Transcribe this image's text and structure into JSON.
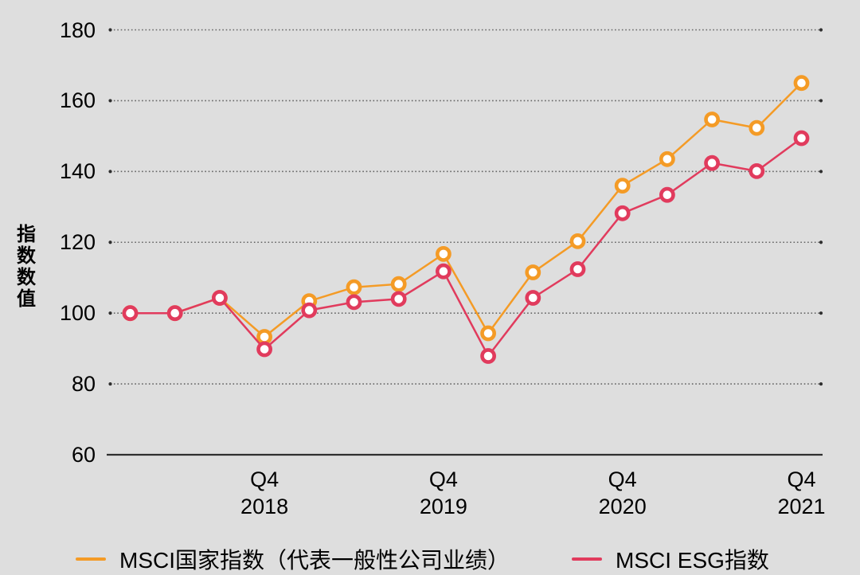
{
  "colors": {
    "background": "#dedede",
    "country_series": "#f49b26",
    "esg_series": "#e13b5d",
    "grid_dots": "#646464",
    "grid_end_dots": "#2f2f2f",
    "axis_line": "#2f2f2f",
    "text": "#000000",
    "marker_fill": "#ffffff"
  },
  "y_axis": {
    "title": "指数数值",
    "ticks": [
      180,
      160,
      140,
      120,
      100,
      80,
      60
    ]
  },
  "x_axis": {
    "ticks": [
      {
        "quarter": "Q4",
        "year": "2018"
      },
      {
        "quarter": "Q4",
        "year": "2019"
      },
      {
        "quarter": "Q4",
        "year": "2020"
      },
      {
        "quarter": "Q4",
        "year": "2021"
      }
    ]
  },
  "legend": {
    "items": [
      {
        "label": "MSCI国家指数（代表一般性公司业绩）",
        "color": "#f49b26"
      },
      {
        "label": "MSCI ESG指数",
        "color": "#e13b5d"
      }
    ]
  },
  "chart_data": {
    "type": "line",
    "title": "",
    "xlabel": "",
    "ylabel": "指数数值",
    "ylim": [
      60,
      180
    ],
    "yticks": [
      60,
      80,
      100,
      120,
      140,
      160,
      180
    ],
    "grid": "horizontal dotted, solid baseline at 60",
    "legend_position": "bottom",
    "marker": "open-circle",
    "categories": [
      "Q1 2018",
      "Q2 2018",
      "Q3 2018",
      "Q4 2018",
      "Q1 2019",
      "Q2 2019",
      "Q3 2019",
      "Q4 2019",
      "Q1 2020",
      "Q2 2020",
      "Q3 2020",
      "Q4 2020",
      "Q1 2021",
      "Q2 2021",
      "Q3 2021",
      "Q4 2021"
    ],
    "xtick_labels": [
      "Q4 2018",
      "Q4 2019",
      "Q4 2020",
      "Q4 2021"
    ],
    "xtick_indices": [
      3,
      7,
      11,
      15
    ],
    "series": [
      {
        "name": "MSCI国家指数（代表一般性公司业绩）",
        "color": "#f49b26",
        "values": [
          100.0,
          100.0,
          104.3,
          93.3,
          103.4,
          107.3,
          108.2,
          116.7,
          94.3,
          111.5,
          120.3,
          136.0,
          143.5,
          154.7,
          152.3,
          165.0
        ]
      },
      {
        "name": "MSCI ESG指数",
        "color": "#e13b5d",
        "values": [
          100.0,
          100.0,
          104.3,
          89.8,
          100.8,
          103.1,
          104.0,
          111.8,
          87.9,
          104.3,
          112.4,
          128.2,
          133.4,
          142.4,
          140.1,
          149.4
        ]
      }
    ]
  }
}
